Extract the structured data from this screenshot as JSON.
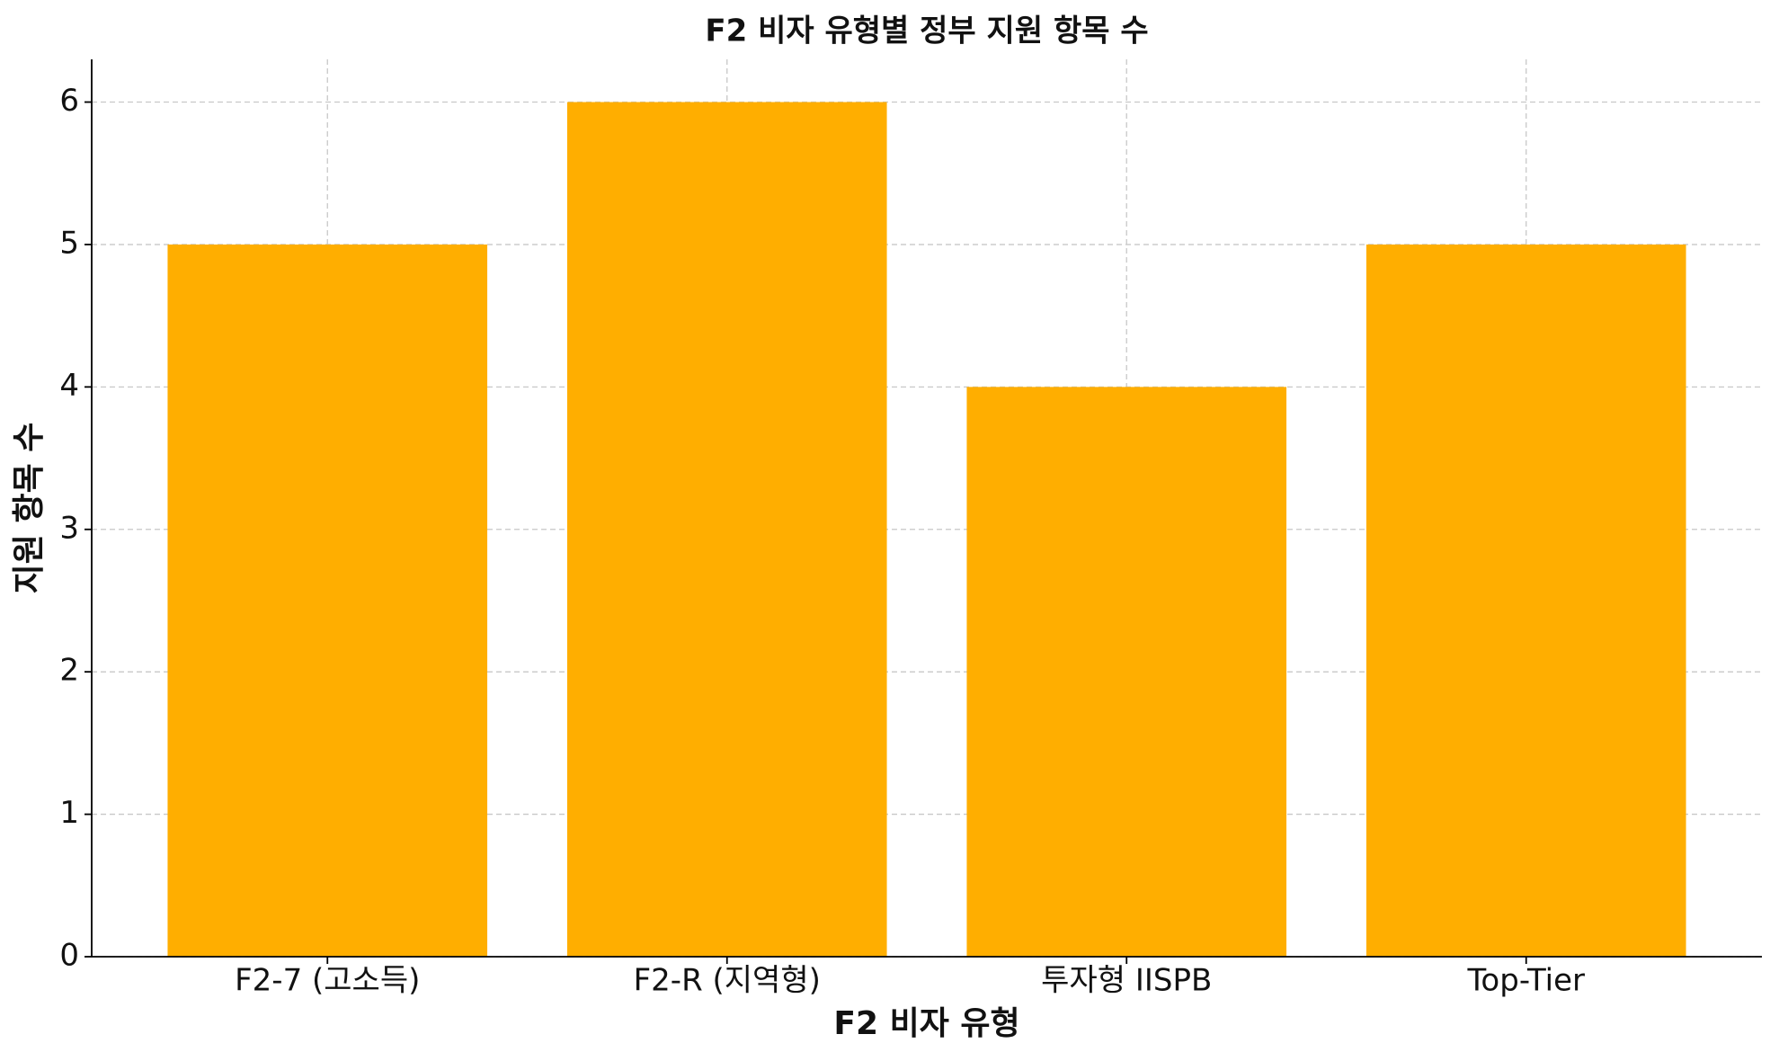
{
  "chart_data": {
    "type": "bar",
    "title": "F2 비자 유형별 정부 지원 항목 수",
    "x_label": "F2 비자 유형",
    "y_label": "지원 항목 수",
    "categories": [
      "F2-7 (고소득)",
      "F2-R (지역형)",
      "투자형 IISPB",
      "Top-Tier"
    ],
    "values": [
      5,
      6,
      4,
      5
    ],
    "color": "#ffae00",
    "ylim": [
      0,
      6.3
    ],
    "yticks": [
      0,
      1,
      2,
      3,
      4,
      5,
      6
    ],
    "grid": true
  }
}
